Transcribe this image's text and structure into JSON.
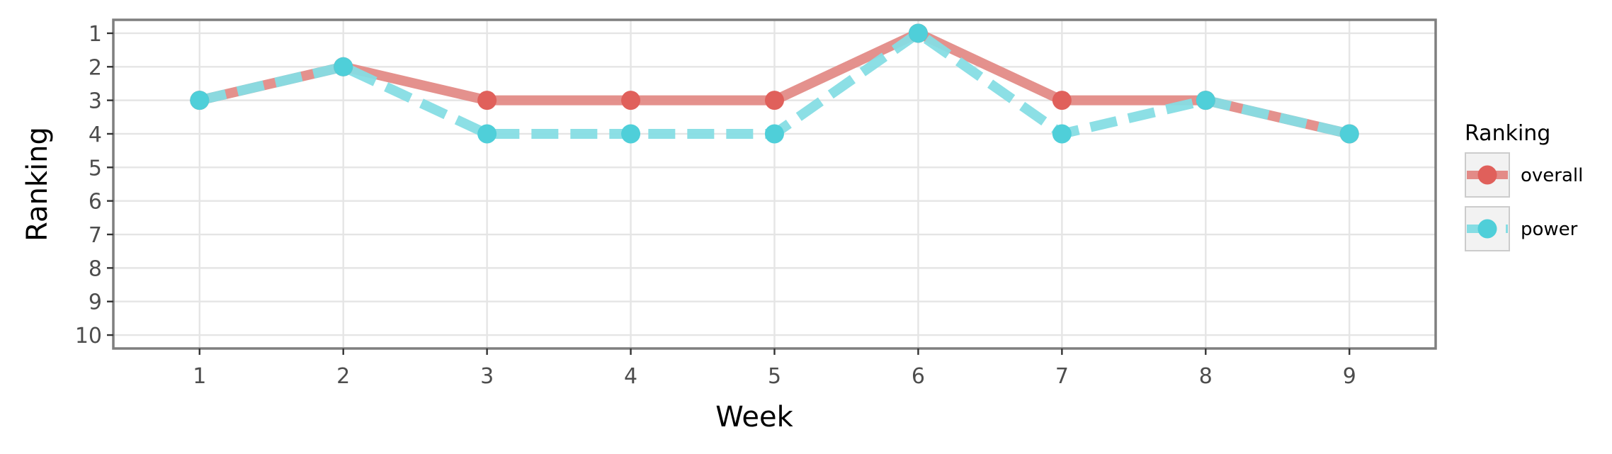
{
  "chart_data": {
    "type": "line",
    "xlabel": "Week",
    "ylabel": "Ranking",
    "x": [
      1,
      2,
      3,
      4,
      5,
      6,
      7,
      8,
      9
    ],
    "x_ticks": [
      "1",
      "2",
      "3",
      "4",
      "5",
      "6",
      "7",
      "8",
      "9"
    ],
    "y_ticks": [
      "1",
      "2",
      "3",
      "4",
      "5",
      "6",
      "7",
      "8",
      "9",
      "10"
    ],
    "xlim": [
      0.4,
      9.6
    ],
    "ylim": [
      0.6,
      10.4
    ],
    "y_reversed": true,
    "grid": true,
    "legend": {
      "title": "Ranking",
      "placement": "right"
    },
    "series": [
      {
        "name": "overall",
        "values": [
          3,
          2,
          3,
          3,
          3,
          1,
          3,
          3,
          4
        ],
        "color": "#e0605b",
        "line_color": "#e38b87",
        "style": "solid"
      },
      {
        "name": "power",
        "values": [
          3,
          2,
          4,
          4,
          4,
          1,
          4,
          3,
          4
        ],
        "color": "#4fcfd9",
        "line_color": "#86dde4",
        "style": "dashed"
      }
    ]
  }
}
